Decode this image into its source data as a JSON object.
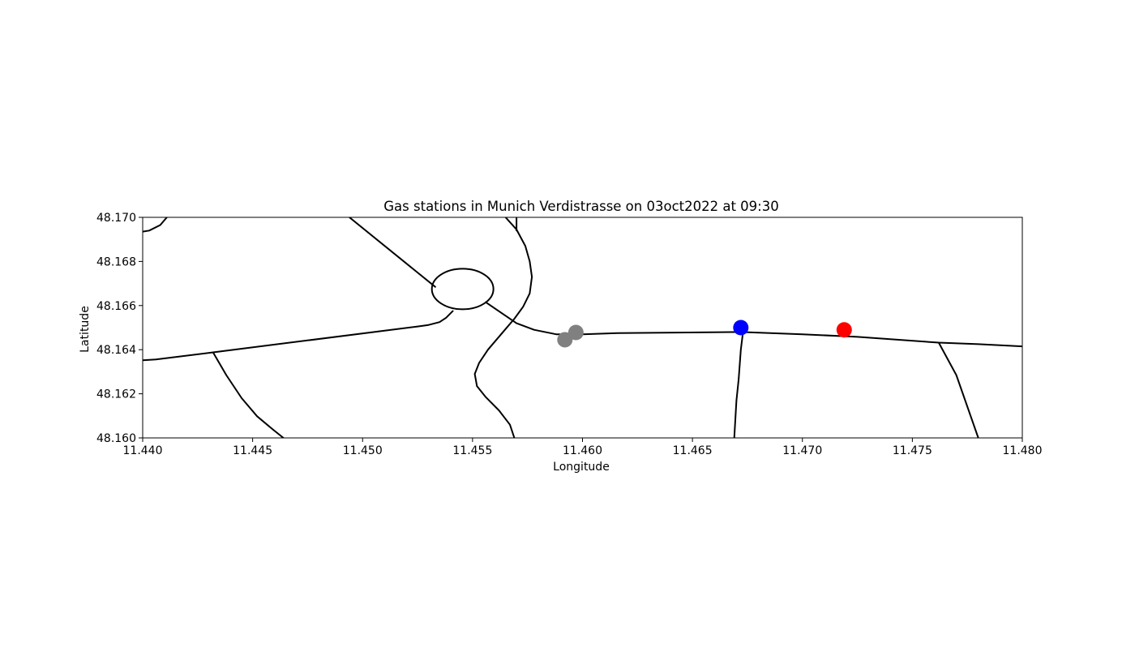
{
  "chart_data": {
    "type": "scatter",
    "title": "Gas stations in Munich Verdistrasse on 03oct2022 at 09:30",
    "xlabel": "Longitude",
    "ylabel": "Latitude",
    "xlim": [
      11.44,
      11.48
    ],
    "ylim": [
      48.16,
      48.17
    ],
    "xticks": [
      "11.440",
      "11.445",
      "11.450",
      "11.455",
      "11.460",
      "11.465",
      "11.470",
      "11.475",
      "11.480"
    ],
    "yticks": [
      "48.160",
      "48.162",
      "48.164",
      "48.166",
      "48.168",
      "48.170"
    ],
    "grid": false,
    "stations": [
      {
        "lon": 11.4592,
        "lat": 48.16445,
        "color": "#808080"
      },
      {
        "lon": 11.4597,
        "lat": 48.16478,
        "color": "#808080"
      },
      {
        "lon": 11.4672,
        "lat": 48.165,
        "color": "#0000ff"
      },
      {
        "lon": 11.4719,
        "lat": 48.1649,
        "color": "#ff0000"
      }
    ],
    "roads": [
      [
        [
          11.44,
          48.16935
        ],
        [
          11.4403,
          48.1694
        ],
        [
          11.4408,
          48.16965
        ],
        [
          11.4411,
          48.17
        ]
      ],
      [
        [
          11.4494,
          48.17
        ],
        [
          11.4533,
          48.16685
        ]
      ],
      [
        [
          11.44,
          48.16352
        ],
        [
          11.4406,
          48.16356
        ],
        [
          11.4432,
          48.16388
        ],
        [
          11.4525,
          48.16505
        ],
        [
          11.453,
          48.16512
        ],
        [
          11.4535,
          48.16525
        ],
        [
          11.4538,
          48.16545
        ],
        [
          11.4541,
          48.16575
        ]
      ],
      [
        [
          11.4432,
          48.16388
        ],
        [
          11.4438,
          48.16285
        ],
        [
          11.4445,
          48.1618
        ],
        [
          11.4452,
          48.16098
        ],
        [
          11.4459,
          48.1604
        ],
        [
          11.4464,
          48.16
        ]
      ],
      [
        [
          11.4565,
          48.17
        ],
        [
          11.457,
          48.16945
        ],
        [
          11.4574,
          48.1687
        ],
        [
          11.4576,
          48.168
        ],
        [
          11.4577,
          48.1673
        ],
        [
          11.4576,
          48.16655
        ],
        [
          11.4573,
          48.16595
        ],
        [
          11.4569,
          48.1654
        ],
        [
          11.4563,
          48.1647
        ],
        [
          11.4557,
          48.164
        ],
        [
          11.4553,
          48.1634
        ],
        [
          11.4551,
          48.1629
        ],
        [
          11.4552,
          48.16235
        ],
        [
          11.4556,
          48.16185
        ],
        [
          11.4562,
          48.16125
        ],
        [
          11.4567,
          48.1606
        ],
        [
          11.4569,
          48.16
        ]
      ],
      [
        [
          11.457,
          48.17
        ],
        [
          11.457,
          48.1694
        ]
      ],
      [
        [
          11.4556,
          48.16615
        ],
        [
          11.457,
          48.1652
        ],
        [
          11.4578,
          48.1649
        ],
        [
          11.4588,
          48.1647
        ],
        [
          11.46,
          48.1647
        ],
        [
          11.4616,
          48.16475
        ],
        [
          11.4672,
          48.1648
        ],
        [
          11.47,
          48.1647
        ],
        [
          11.4725,
          48.16458
        ],
        [
          11.4762,
          48.16432
        ],
        [
          11.478,
          48.16425
        ],
        [
          11.48,
          48.16415
        ]
      ],
      [
        [
          11.4673,
          48.1648
        ],
        [
          11.4672,
          48.164
        ],
        [
          11.4671,
          48.16265
        ],
        [
          11.467,
          48.1617
        ],
        [
          11.4669,
          48.16
        ]
      ],
      [
        [
          11.4762,
          48.16432
        ],
        [
          11.477,
          48.16285
        ],
        [
          11.478,
          48.16
        ]
      ]
    ],
    "roundabout": {
      "lon": 11.45455,
      "lat": 48.16675,
      "rx_deg": 0.0014,
      "ry_deg": 0.00092
    }
  }
}
